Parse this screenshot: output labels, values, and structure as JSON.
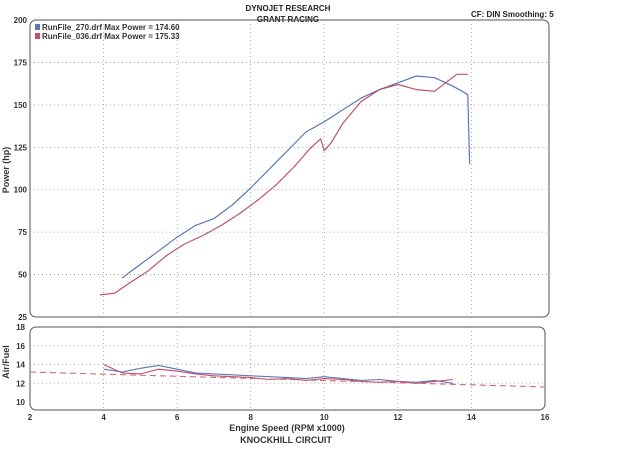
{
  "header": {
    "title_line1": "DYNOJET RESEARCH",
    "title_line2": "GRANT RACING",
    "settings": "CF: DIN  Smoothing: 5"
  },
  "colors": {
    "run270": "#5b78b8",
    "run036": "#c0506a",
    "afr_target": "#d06a78",
    "frame": "#555555",
    "grid": "#9a9a9a"
  },
  "chart_data": [
    {
      "type": "line",
      "title": "",
      "xlabel": "",
      "ylabel": "Power (hp)",
      "xlim": [
        2,
        16
      ],
      "ylim": [
        25,
        200
      ],
      "yticks": [
        25,
        50,
        75,
        100,
        125,
        150,
        175,
        200
      ],
      "grid": true,
      "legend": "top-left",
      "legend_entries": [
        "RunFile_270.drf Max Power = 174.60",
        "RunFile_036.drf Max Power = 175.33"
      ],
      "series": [
        {
          "id": "run270",
          "x": [
            4.5,
            5.0,
            5.5,
            6.0,
            6.5,
            7.0,
            7.5,
            8.0,
            8.5,
            9.0,
            9.5,
            10.0,
            10.5,
            11.0,
            11.5,
            12.0,
            12.5,
            13.0,
            13.5,
            13.75,
            13.9,
            13.95
          ],
          "y": [
            48,
            56,
            64,
            72,
            79,
            83,
            91,
            101,
            112,
            123,
            134,
            140,
            147,
            154,
            159,
            163,
            167,
            166,
            161,
            158,
            156,
            115
          ]
        },
        {
          "id": "run036",
          "x": [
            3.9,
            4.3,
            4.7,
            5.2,
            5.7,
            6.2,
            6.7,
            7.2,
            7.7,
            8.2,
            8.7,
            9.2,
            9.6,
            9.9,
            10.0,
            10.2,
            10.5,
            11.0,
            11.5,
            12.0,
            12.5,
            13.0,
            13.3,
            13.6,
            13.9
          ],
          "y": [
            38,
            39,
            45,
            52,
            61,
            68,
            73,
            79,
            86,
            94,
            103,
            114,
            124,
            130,
            123,
            128,
            139,
            152,
            159,
            162,
            159,
            158,
            163,
            168,
            168
          ]
        }
      ]
    },
    {
      "type": "line",
      "title": "",
      "xlabel": "Engine Speed (RPM x1000)",
      "ylabel": "Air/Fuel",
      "xlim": [
        2,
        16
      ],
      "ylim": [
        10,
        18
      ],
      "yticks": [
        10,
        12,
        14,
        16,
        18
      ],
      "xticks": [
        2,
        4,
        6,
        8,
        10,
        12,
        14,
        16
      ],
      "grid": true,
      "annotation_below": "KNOCKHILL CIRCUIT",
      "series": [
        {
          "id": "run270",
          "x": [
            4.0,
            4.5,
            5.0,
            5.5,
            6.0,
            6.5,
            7.0,
            7.5,
            8.0,
            8.5,
            9.0,
            9.5,
            10.0,
            10.5,
            11.0,
            11.5,
            12.0,
            12.5,
            13.0,
            13.5
          ],
          "y": [
            13.5,
            13.2,
            13.6,
            13.9,
            13.5,
            13.1,
            13.0,
            12.9,
            12.8,
            12.7,
            12.6,
            12.5,
            12.7,
            12.5,
            12.3,
            12.4,
            12.2,
            12.1,
            12.3,
            12.0
          ]
        },
        {
          "id": "run036",
          "x": [
            4.0,
            4.5,
            5.0,
            5.5,
            6.0,
            6.5,
            7.0,
            7.5,
            8.0,
            8.5,
            9.0,
            9.5,
            10.0,
            10.5,
            11.0,
            11.5,
            12.0,
            12.5,
            13.0,
            13.5
          ],
          "y": [
            14.0,
            13.1,
            13.0,
            13.5,
            13.3,
            13.0,
            12.8,
            12.7,
            12.6,
            12.4,
            12.5,
            12.3,
            12.5,
            12.4,
            12.2,
            12.1,
            12.2,
            12.0,
            12.2,
            12.4
          ]
        },
        {
          "id": "afr_target",
          "dashed": true,
          "x": [
            2,
            16
          ],
          "y": [
            13.2,
            11.6
          ]
        }
      ]
    }
  ]
}
